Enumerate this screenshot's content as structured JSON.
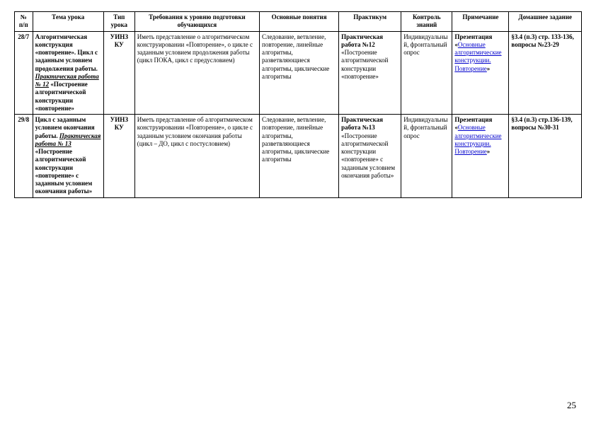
{
  "headers": {
    "num": "№ п/п",
    "topic": "Тема урока",
    "type": "Тип урока",
    "req": "Требования к уровню подготовки обучающихся",
    "conc": "Основные понятия",
    "prac": "Практикум",
    "ctrl": "Контроль знаний",
    "note": "Примечание",
    "hw": "Домашнее задание"
  },
  "rows": [
    {
      "num": "28/7",
      "topic_b1": "Алгоритмическая конструкция «повторение». Цикл с заданным условием продолжения работы.",
      "topic_i": "Практическая работа № 12",
      "topic_b2": " «Построение алгоритмической конструкции «повторение»",
      "type1": "УИНЗ",
      "type2": "КУ",
      "req": "Иметь представление о алгоритмическом конструировании «Повторение», о цикле с заданным условием продолжения работы (цикл ПОКА, цикл с предусловием)",
      "conc": "Следование, ветвление, повторение, линейные алгоритмы, разветвляющиеся алгоритмы, циклические алгоритмы",
      "prac_b": "Практическая работа №12",
      "prac_r": " «Построение алгоритмической конструкции «повторение»",
      "ctrl": "Индивидуальный, фронтальный опрос",
      "note1": "Презентация «",
      "note_link": "Основные алгоритмические конструкции. Повторение",
      "note2": "»",
      "hw": "§3.4 (п.3) стр. 133-136, вопросы №23-29"
    },
    {
      "num": "29/8",
      "topic_b1": "Цикл с заданным условием окончания работы.",
      "topic_i": "Практическая работа № 13",
      "topic_b2": " «Построение алгоритмической конструкции «повторение» с заданным условием окончания работы»",
      "type1": "УИНЗ",
      "type2": "КУ",
      "req": "Иметь представление об алгоритмическом конструировании «Повторение», о цикле с заданным условием окончания работы (цикл – ДО, цикл с постусловием)",
      "conc": "Следование, ветвление, повторение, линейные алгоритмы, разветвляющиеся алгоритмы, циклические алгоритмы",
      "prac_b": "Практическая работа №13",
      "prac_r": " «Построение алгоритмической конструкции «повторение» с заданным условием окончания работы»",
      "ctrl": "Индивидуальный, фронтальный опрос",
      "note1": "Презентация «",
      "note_link": "Основные алгоритмические конструкции. Повторение",
      "note2": "»",
      "hw": "§3.4 (п.3) стр.136-139, вопросы №30-31"
    }
  ],
  "page_number": "25"
}
